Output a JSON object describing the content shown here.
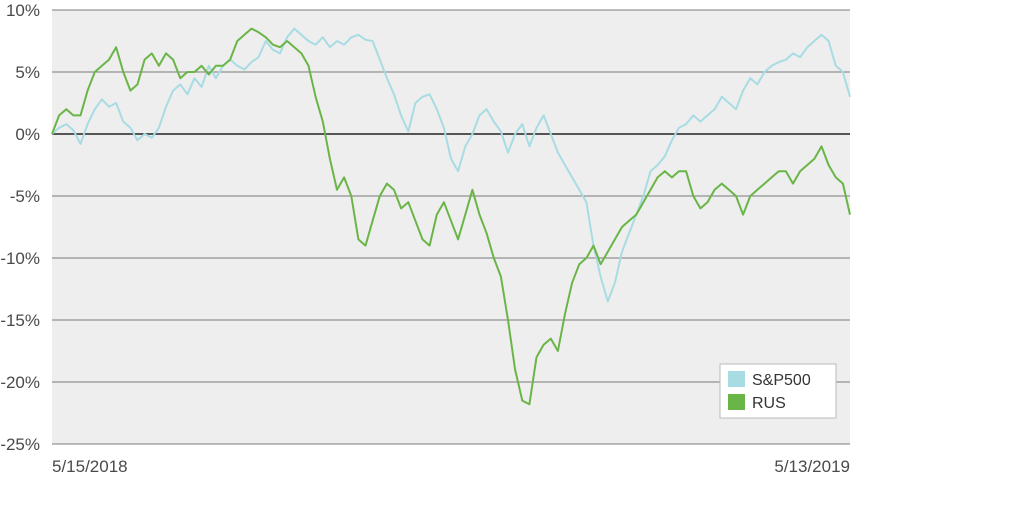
{
  "chart_data": {
    "type": "line",
    "x_labels": [
      "5/15/2018",
      "5/13/2019"
    ],
    "ylim": [
      -25,
      10
    ],
    "y_ticks": [
      10,
      5,
      0,
      -5,
      -10,
      -15,
      -20,
      -25
    ],
    "y_tick_labels": [
      "10%",
      "5%",
      "0%",
      "-5%",
      "-10%",
      "-15%",
      "-20%",
      "-25%"
    ],
    "legend_position": "bottom-right",
    "grid": true,
    "series": [
      {
        "name": "S&P500",
        "color": "#a8dce3",
        "values": [
          0,
          0.5,
          0.8,
          0.3,
          -0.8,
          0.8,
          2.0,
          2.8,
          2.2,
          2.5,
          1.0,
          0.5,
          -0.5,
          0,
          -0.3,
          0.5,
          2.2,
          3.5,
          4.0,
          3.2,
          4.5,
          3.8,
          5.5,
          4.5,
          5.5,
          6.0,
          5.5,
          5.2,
          5.8,
          6.2,
          7.5,
          6.8,
          6.5,
          7.8,
          8.5,
          8.0,
          7.5,
          7.2,
          7.8,
          7.0,
          7.5,
          7.2,
          7.8,
          8.0,
          7.6,
          7.5,
          6.0,
          4.5,
          3.2,
          1.5,
          0.2,
          2.5,
          3.0,
          3.2,
          2.0,
          0.5,
          -2.0,
          -3.0,
          -1.0,
          0,
          1.5,
          2.0,
          1.0,
          0.2,
          -1.5,
          0,
          0.8,
          -1.0,
          0.5,
          1.5,
          0,
          -1.5,
          -2.5,
          -3.5,
          -4.5,
          -5.5,
          -9.0,
          -11.5,
          -13.5,
          -12.0,
          -9.5,
          -8.0,
          -6.5,
          -5.0,
          -3.0,
          -2.5,
          -1.8,
          -0.5,
          0.5,
          0.8,
          1.5,
          1.0,
          1.5,
          2.0,
          3.0,
          2.5,
          2.0,
          3.5,
          4.5,
          4.0,
          5.0,
          5.5,
          5.8,
          6.0,
          6.5,
          6.2,
          7.0,
          7.5,
          8.0,
          7.5,
          5.5,
          5.0,
          3.0
        ]
      },
      {
        "name": "RUS",
        "color": "#6ab547",
        "values": [
          0,
          1.5,
          2.0,
          1.5,
          1.5,
          3.5,
          5.0,
          5.5,
          6.0,
          7.0,
          5.0,
          3.5,
          4.0,
          6.0,
          6.5,
          5.5,
          6.5,
          6.0,
          4.5,
          5.0,
          5.0,
          5.5,
          4.8,
          5.5,
          5.5,
          6.0,
          7.5,
          8.0,
          8.5,
          8.2,
          7.8,
          7.2,
          7.0,
          7.5,
          7.0,
          6.5,
          5.5,
          3.0,
          1.0,
          -2.0,
          -4.5,
          -3.5,
          -5.0,
          -8.5,
          -9.0,
          -7.0,
          -5.0,
          -4.0,
          -4.5,
          -6.0,
          -5.5,
          -7.0,
          -8.5,
          -9.0,
          -6.5,
          -5.5,
          -7.0,
          -8.5,
          -6.5,
          -4.5,
          -6.5,
          -8.0,
          -10.0,
          -11.5,
          -15.0,
          -19.0,
          -21.5,
          -21.8,
          -18.0,
          -17.0,
          -16.5,
          -17.5,
          -14.5,
          -12.0,
          -10.5,
          -10.0,
          -9.0,
          -10.5,
          -9.5,
          -8.5,
          -7.5,
          -7.0,
          -6.5,
          -5.5,
          -4.5,
          -3.5,
          -3.0,
          -3.5,
          -3.0,
          -3.0,
          -5.0,
          -6.0,
          -5.5,
          -4.5,
          -4.0,
          -4.5,
          -5.0,
          -6.5,
          -5.0,
          -4.5,
          -4.0,
          -3.5,
          -3.0,
          -3.0,
          -4.0,
          -3.0,
          -2.5,
          -2.0,
          -1.0,
          -2.5,
          -3.5,
          -4.0,
          -6.5
        ]
      }
    ]
  }
}
